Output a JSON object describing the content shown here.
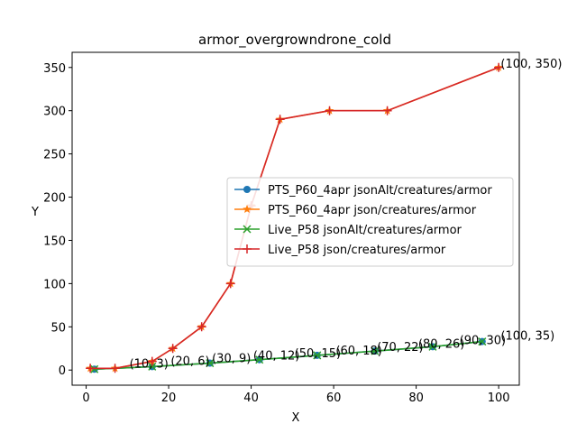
{
  "chart_data": {
    "type": "line",
    "title": "armor_overgrowndrone_cold",
    "xlabel": "X",
    "ylabel": "Y",
    "xlim": [
      -3.4,
      105
    ],
    "ylim": [
      -17.5,
      367.5
    ],
    "xticks": [
      0,
      20,
      40,
      60,
      80,
      100
    ],
    "yticks": [
      0,
      50,
      100,
      150,
      200,
      250,
      300,
      350
    ],
    "grid": false,
    "legend_position": "center-right",
    "series": [
      {
        "name": "PTS_P60_4apr jsonAlt/creatures/armor",
        "color": "#1f77b4",
        "marker": "circle",
        "x": [
          2,
          16,
          30,
          42,
          56,
          70,
          84,
          96
        ],
        "y": [
          1,
          4,
          8,
          12,
          17,
          22,
          27,
          33
        ]
      },
      {
        "name": "PTS_P60_4apr json/creatures/armor",
        "color": "#ff7f0e",
        "marker": "star",
        "x": [
          1,
          7,
          16,
          21,
          28,
          35,
          40,
          47,
          59,
          73,
          100
        ],
        "y": [
          2,
          2,
          10,
          25,
          50,
          100,
          190,
          290,
          300,
          300,
          350
        ]
      },
      {
        "name": "Live_P58 jsonAlt/creatures/armor",
        "color": "#2ca02c",
        "marker": "x",
        "x": [
          2,
          16,
          30,
          42,
          56,
          70,
          84,
          96
        ],
        "y": [
          1,
          4,
          8,
          12,
          17,
          22,
          27,
          33
        ]
      },
      {
        "name": "Live_P58 json/creatures/armor",
        "color": "#d62728",
        "marker": "plus",
        "x": [
          1,
          7,
          16,
          21,
          28,
          35,
          40,
          47,
          59,
          73,
          100
        ],
        "y": [
          2,
          2,
          10,
          25,
          50,
          100,
          190,
          290,
          300,
          300,
          350
        ]
      }
    ],
    "annotations": [
      {
        "text": "(10, 3)",
        "x": 10.5,
        "y": 3
      },
      {
        "text": "(20, 6)",
        "x": 20.5,
        "y": 6
      },
      {
        "text": "(30, 9)",
        "x": 30.5,
        "y": 9
      },
      {
        "text": "(40, 12)",
        "x": 40.5,
        "y": 12
      },
      {
        "text": "(50, 15)",
        "x": 50.5,
        "y": 15
      },
      {
        "text": "(60, 18)",
        "x": 60.5,
        "y": 18
      },
      {
        "text": "(70, 22)",
        "x": 70.5,
        "y": 22
      },
      {
        "text": "(80, 26)",
        "x": 80.5,
        "y": 26
      },
      {
        "text": "(90, 30)",
        "x": 90.5,
        "y": 30
      },
      {
        "text": "(100, 35)",
        "x": 100.5,
        "y": 35
      },
      {
        "text": "(100, 350)",
        "x": 100.5,
        "y": 350
      }
    ]
  }
}
